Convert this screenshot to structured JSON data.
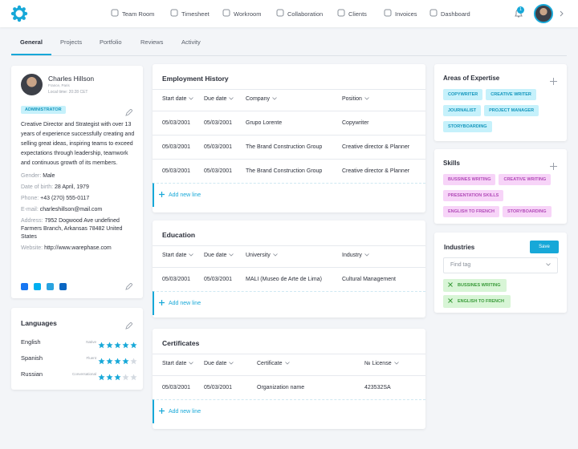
{
  "nav": {
    "items": [
      "Team Room",
      "Timesheet",
      "Workroom",
      "Collaboration",
      "Clients",
      "Invoices",
      "Dashboard"
    ],
    "notifications": "1"
  },
  "tabs": {
    "items": [
      "General",
      "Projects",
      "Portfolio",
      "Reviews",
      "Activity"
    ],
    "active": 0
  },
  "profile": {
    "name": "Charles Hillson",
    "location": "France, Paris",
    "local_time": "Local time: 20:28 CET",
    "role": "ADMINISTRATOR",
    "bio": "Creative Director and Strategist with over 13 years of experience successfully creating and selling great ideas, inspiring teams to exceed expectations through leadership, teamwork and continuous growth of its members.",
    "fields": [
      {
        "label": "Gender:",
        "value": "Male"
      },
      {
        "label": "Date of birth:",
        "value": "28 April, 1979"
      },
      {
        "label": "Phone:",
        "value": "+43 (270) 555-0117"
      },
      {
        "label": "E-mail:",
        "value": "charleshillson@mail.com"
      },
      {
        "label": "Address:",
        "value": "7952 Dogwood Ave undefined Farmers Branch, Arkansas 78482 United States"
      },
      {
        "label": "Website:",
        "value": "http://www.warephase.com"
      }
    ]
  },
  "languages": {
    "title": "Languages",
    "items": [
      {
        "name": "English",
        "level": "Native",
        "rating": 5
      },
      {
        "name": "Spanish",
        "level": "Fluent",
        "rating": 4
      },
      {
        "name": "Russian",
        "level": "Conversational",
        "rating": 3
      }
    ]
  },
  "sections": [
    {
      "title": "Employment History",
      "columns": [
        "Start date",
        "Due date",
        "Company",
        "Position"
      ],
      "rows": [
        [
          "05/03/2001",
          "05/03/2001",
          "Grupo Lorente",
          "Copywriter"
        ],
        [
          "05/03/2001",
          "05/03/2001",
          "The Brand Construction Group",
          "Creative director & Planner"
        ],
        [
          "05/03/2001",
          "05/03/2001",
          "The Brand Construction Group",
          "Creative director & Planner"
        ]
      ],
      "add": "Add new line"
    },
    {
      "title": "Education",
      "columns": [
        "Start date",
        "Due date",
        "University",
        "Industry"
      ],
      "rows": [
        [
          "05/03/2001",
          "05/03/2001",
          "MALI (Museo de Arte de Lima)",
          "Cultural Management"
        ]
      ],
      "add": "Add new line"
    },
    {
      "title": "Certificates",
      "columns": [
        "Start date",
        "Due date",
        "Certificate",
        "№ License"
      ],
      "rows": [
        [
          "05/03/2001",
          "05/03/2001",
          "Organization name",
          "423532SA"
        ]
      ],
      "add": "Add new line"
    }
  ],
  "expertise": {
    "title": "Areas of Expertise",
    "tags": [
      "COPYWRITER",
      "CREATIVE WRITER",
      "JOURNALIST",
      "PROJECT MANAGER",
      "STORYBOARDING"
    ]
  },
  "skills": {
    "title": "Skills",
    "tags": [
      "BUSSINES WRITING",
      "CREATIVE WRITING",
      "PRESENTATION SKILLS",
      "ENGLISH TO FRENCH",
      "STORYBOARDING"
    ]
  },
  "industries": {
    "title": "Industries",
    "button": "Save",
    "placeholder": "Find tag",
    "tags": [
      "BUSSINES WRITING",
      "ENGLISH TO FRENCH"
    ]
  }
}
